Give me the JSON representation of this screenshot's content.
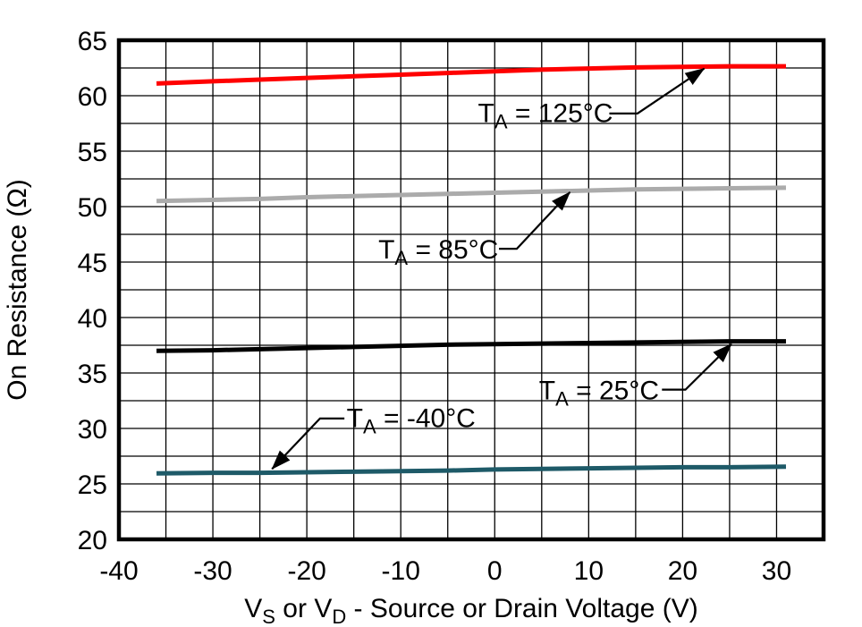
{
  "chart_data": {
    "type": "line",
    "title": "",
    "xlabel_plain": "VS or VD - Source or Drain Voltage (V)",
    "xlabel_segments": [
      {
        "t": "V"
      },
      {
        "t": "S",
        "sub": true
      },
      {
        "t": " or V"
      },
      {
        "t": "D",
        "sub": true
      },
      {
        "t": " - Source or Drain Voltage (V)"
      }
    ],
    "ylabel": "On Resistance (Ω)",
    "xlim": [
      -40,
      35
    ],
    "ylim": [
      20,
      65
    ],
    "x_ticks": [
      -40,
      -30,
      -20,
      -10,
      0,
      10,
      20,
      30
    ],
    "y_ticks": [
      20,
      25,
      30,
      35,
      40,
      45,
      50,
      55,
      60,
      65
    ],
    "grid": {
      "on": true,
      "x_step": 5,
      "y_step": 2.5,
      "color": "#000000"
    },
    "legend_position": "none",
    "series": [
      {
        "name": "TA = 125°C",
        "color": "#ff0000",
        "points": [
          [
            -36,
            61.1
          ],
          [
            -30,
            61.3
          ],
          [
            -25,
            61.45
          ],
          [
            -20,
            61.6
          ],
          [
            -15,
            61.75
          ],
          [
            -10,
            61.9
          ],
          [
            -5,
            62.05
          ],
          [
            0,
            62.2
          ],
          [
            5,
            62.35
          ],
          [
            10,
            62.45
          ],
          [
            15,
            62.55
          ],
          [
            20,
            62.6
          ],
          [
            25,
            62.65
          ],
          [
            31,
            62.65
          ]
        ]
      },
      {
        "name": "TA = 85°C",
        "color": "#ababab",
        "points": [
          [
            -36,
            50.5
          ],
          [
            -30,
            50.6
          ],
          [
            -25,
            50.7
          ],
          [
            -20,
            50.85
          ],
          [
            -15,
            50.95
          ],
          [
            -10,
            51.05
          ],
          [
            -5,
            51.15
          ],
          [
            0,
            51.25
          ],
          [
            5,
            51.35
          ],
          [
            10,
            51.45
          ],
          [
            15,
            51.55
          ],
          [
            20,
            51.6
          ],
          [
            25,
            51.65
          ],
          [
            31,
            51.7
          ]
        ]
      },
      {
        "name": "TA = 25°C",
        "color": "#000000",
        "points": [
          [
            -36,
            37.0
          ],
          [
            -30,
            37.05
          ],
          [
            -25,
            37.15
          ],
          [
            -20,
            37.25
          ],
          [
            -15,
            37.35
          ],
          [
            -10,
            37.45
          ],
          [
            -5,
            37.55
          ],
          [
            0,
            37.6
          ],
          [
            5,
            37.65
          ],
          [
            10,
            37.7
          ],
          [
            15,
            37.75
          ],
          [
            20,
            37.8
          ],
          [
            25,
            37.85
          ],
          [
            31,
            37.85
          ]
        ]
      },
      {
        "name": "TA = -40°C",
        "color": "#1e5a68",
        "points": [
          [
            -36,
            25.95
          ],
          [
            -30,
            26.0
          ],
          [
            -25,
            26.0
          ],
          [
            -20,
            26.05
          ],
          [
            -15,
            26.1
          ],
          [
            -10,
            26.15
          ],
          [
            -5,
            26.2
          ],
          [
            0,
            26.3
          ],
          [
            5,
            26.35
          ],
          [
            10,
            26.4
          ],
          [
            15,
            26.45
          ],
          [
            20,
            26.5
          ],
          [
            25,
            26.5
          ],
          [
            31,
            26.55
          ]
        ]
      }
    ],
    "annotations": [
      {
        "plain": "TA = 125°C",
        "segments": [
          {
            "t": "T"
          },
          {
            "t": "A",
            "sub": true
          },
          {
            "t": " = 125°C"
          }
        ],
        "text_at": [
          5.4,
          58.5
        ],
        "leader": [
          [
            12.2,
            58.4
          ],
          [
            15.2,
            58.4
          ],
          [
            22.3,
            62.45
          ]
        ]
      },
      {
        "plain": "TA = 85°C",
        "segments": [
          {
            "t": "T"
          },
          {
            "t": "A",
            "sub": true
          },
          {
            "t": " = 85°C"
          }
        ],
        "text_at": [
          -6.0,
          46.2
        ],
        "leader": [
          [
            0.45,
            46.2
          ],
          [
            2.35,
            46.2
          ],
          [
            8.0,
            51.3
          ]
        ]
      },
      {
        "plain": "TA = 25°C",
        "segments": [
          {
            "t": "T"
          },
          {
            "t": "A",
            "sub": true
          },
          {
            "t": " = 25°C"
          }
        ],
        "text_at": [
          11.1,
          33.5
        ],
        "leader": [
          [
            17.8,
            33.5
          ],
          [
            20.3,
            33.5
          ],
          [
            25.2,
            37.6
          ]
        ]
      },
      {
        "plain": "TA = -40°C",
        "segments": [
          {
            "t": "T"
          },
          {
            "t": "A",
            "sub": true
          },
          {
            "t": " = -40°C"
          }
        ],
        "text_at": [
          -8.9,
          31.0
        ],
        "leader": [
          [
            -16.0,
            30.9
          ],
          [
            -18.6,
            30.9
          ],
          [
            -23.7,
            26.35
          ]
        ]
      }
    ]
  }
}
